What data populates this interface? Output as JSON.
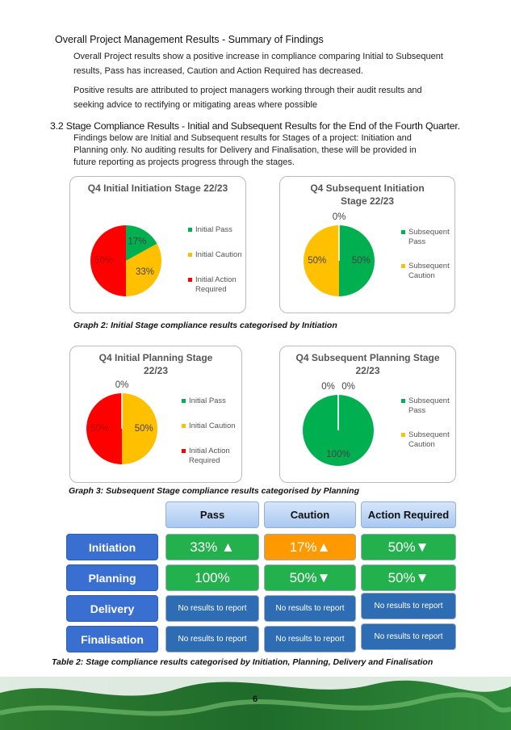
{
  "summary": {
    "heading": "Overall Project Management Results - Summary of Findings",
    "paragraphs": [
      "Overall Project results show a positive increase in compliance comparing Initial to Subsequent results, Pass has increased, Caution and Action Required has decreased.",
      "Positive results are attributed to project managers working through their audit results and seeking advice to rectifying or mitigating areas where possible"
    ]
  },
  "section": {
    "heading": "3.2 Stage Compliance Results - Initial and Subsequent Results for the End of the Fourth Quarter.",
    "paragraph": "Findings below are Initial and Subsequent results for Stages of a project: Initiation and Planning only. No auditing results for Delivery and Finalisation, these will be provided in future reporting as projects progress through the stages."
  },
  "charts": [
    {
      "type": "pie",
      "title": "Q4 Initial Initiation Stage 22/23",
      "categories": [
        "Initial Pass",
        "Initial Caution",
        "Initial Action Required"
      ],
      "values": [
        17,
        33,
        50
      ],
      "value_labels": [
        "17%",
        "33%",
        "50%"
      ],
      "colors": [
        "#00b050",
        "#ffc000",
        "#ff0000"
      ]
    },
    {
      "type": "pie",
      "title": "Q4 Subsequent Initiation Stage 22/23",
      "categories": [
        "Subsequent Pass",
        "Subsequent Caution",
        null
      ],
      "values": [
        50,
        50,
        0
      ],
      "value_labels": [
        "50%",
        "50%",
        "0%"
      ],
      "colors": [
        "#00b050",
        "#ffc000",
        "#ff0000"
      ]
    },
    {
      "type": "pie",
      "title": "Q4 Initial Planning Stage 22/23",
      "categories": [
        "Initial Pass",
        "Initial Caution",
        "Initial Action Required"
      ],
      "values": [
        0,
        50,
        50
      ],
      "value_labels": [
        "0%",
        "50%",
        "50%"
      ],
      "colors": [
        "#00b050",
        "#ffc000",
        "#ff0000"
      ]
    },
    {
      "type": "pie",
      "title": "Q4 Subsequent Planning Stage 22/23",
      "categories": [
        "Subsequent Pass",
        "Subsequent Caution",
        null
      ],
      "values": [
        100,
        0,
        0
      ],
      "value_labels": [
        "100%",
        "0%",
        "0%"
      ],
      "colors": [
        "#00b050",
        "#ffc000",
        "#ff0000"
      ]
    }
  ],
  "captions": [
    "Graph 2: Initial Stage compliance results categorised by Initiation",
    "Graph 3: Subsequent Stage compliance results categorised by Planning",
    "Table 2: Stage compliance results categorised by Initiation, Planning, Delivery and Finalisation"
  ],
  "table": {
    "header": [
      "Pass",
      "Caution",
      "Action Required"
    ],
    "rows": [
      {
        "label": "Initiation",
        "cells": [
          {
            "text": "33% ▲",
            "color": "#22b14c"
          },
          {
            "text": "17%▲",
            "color": "#ff9900"
          },
          {
            "text": "50%▼",
            "color": "#22b14c"
          }
        ]
      },
      {
        "label": "Planning",
        "cells": [
          {
            "text": "100%",
            "color": "#22b14c"
          },
          {
            "text": "50%▼",
            "color": "#22b14c"
          },
          {
            "text": "50%▼",
            "color": "#22b14c"
          }
        ]
      },
      {
        "label": "Delivery",
        "cells": [
          {
            "text": "No results to report",
            "color": "#2e6db4"
          },
          {
            "text": "No results to report",
            "color": "#2e6db4"
          },
          {
            "text": "No results to report",
            "color": "#2e6db4"
          }
        ]
      },
      {
        "label": "Finalisation",
        "cells": [
          {
            "text": "No results to report",
            "color": "#2e6db4"
          },
          {
            "text": "No results to report",
            "color": "#2e6db4"
          },
          {
            "text": "No results to report",
            "color": "#2e6db4"
          }
        ]
      }
    ]
  },
  "footer": {
    "page_number": "6"
  }
}
